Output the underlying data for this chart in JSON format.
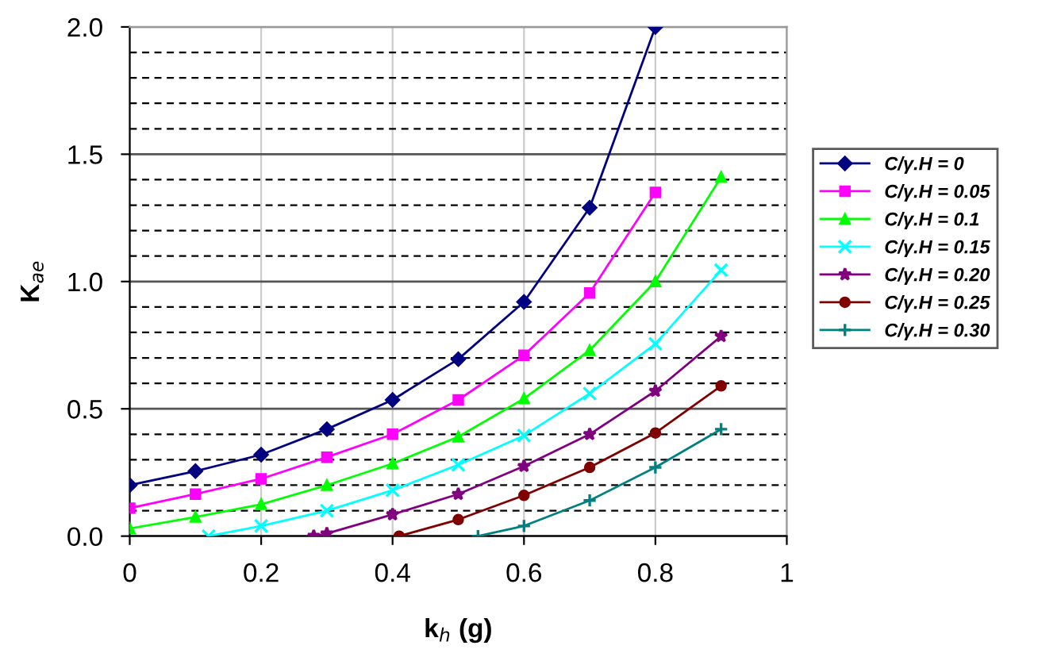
{
  "chart_data": {
    "type": "line",
    "xlabel": "k$_{h}$ (g)",
    "ylabel": "K$_{ae}$",
    "xlim": [
      0,
      1
    ],
    "ylim": [
      0,
      2
    ],
    "xticks": [
      0,
      0.2,
      0.4,
      0.6,
      0.8,
      1
    ],
    "yticks": [
      {
        "value": 0,
        "label": "0.0"
      },
      {
        "value": 0.5,
        "label": "0.5"
      },
      {
        "value": 1,
        "label": "1.0"
      },
      {
        "value": 1.5,
        "label": "1.5"
      },
      {
        "value": 2,
        "label": "2.0"
      }
    ],
    "grid": true,
    "legend": "right",
    "line_style": "solid",
    "ref_lines": [
      {
        "axis": "y",
        "value": 0.1,
        "line_style": "dashed",
        "color": "#000000"
      },
      {
        "axis": "y",
        "value": 0.2,
        "line_style": "dashed",
        "color": "#000000"
      },
      {
        "axis": "y",
        "value": 0.3,
        "line_style": "dashed",
        "color": "#000000"
      },
      {
        "axis": "y",
        "value": 0.4,
        "line_style": "dashed",
        "color": "#000000"
      },
      {
        "axis": "y",
        "value": 0.6,
        "line_style": "dashed",
        "color": "#000000"
      },
      {
        "axis": "y",
        "value": 0.7,
        "line_style": "dashed",
        "color": "#000000"
      },
      {
        "axis": "y",
        "value": 0.8,
        "line_style": "dashed",
        "color": "#000000"
      },
      {
        "axis": "y",
        "value": 0.9,
        "line_style": "dashed",
        "color": "#000000"
      },
      {
        "axis": "y",
        "value": 1.1,
        "line_style": "dashed",
        "color": "#000000"
      },
      {
        "axis": "y",
        "value": 1.2,
        "line_style": "dashed",
        "color": "#000000"
      },
      {
        "axis": "y",
        "value": 1.3,
        "line_style": "dashed",
        "color": "#000000"
      },
      {
        "axis": "y",
        "value": 1.4,
        "line_style": "dashed",
        "color": "#000000"
      },
      {
        "axis": "y",
        "value": 1.6,
        "line_style": "dashed",
        "color": "#000000"
      },
      {
        "axis": "y",
        "value": 1.7,
        "line_style": "dashed",
        "color": "#000000"
      },
      {
        "axis": "y",
        "value": 1.8,
        "line_style": "dashed",
        "color": "#000000"
      },
      {
        "axis": "y",
        "value": 1.9,
        "line_style": "dashed",
        "color": "#000000"
      }
    ],
    "series": [
      {
        "name": "C/γ.H = 0",
        "color": "#000080",
        "marker": "diamond",
        "x": [
          0,
          0.1,
          0.2,
          0.3,
          0.4,
          0.5,
          0.6,
          0.7,
          0.8
        ],
        "values": [
          0.2,
          0.255,
          0.32,
          0.42,
          0.535,
          0.695,
          0.92,
          1.29,
          2.0
        ]
      },
      {
        "name": "C/γ.H = 0.05",
        "color": "#ff00ff",
        "marker": "square",
        "x": [
          0,
          0.1,
          0.2,
          0.3,
          0.4,
          0.5,
          0.6,
          0.7,
          0.8
        ],
        "values": [
          0.11,
          0.165,
          0.225,
          0.31,
          0.4,
          0.535,
          0.71,
          0.955,
          1.35
        ]
      },
      {
        "name": "C/γ.H = 0.1",
        "color": "#00ff00",
        "marker": "triangle",
        "x": [
          0,
          0.1,
          0.2,
          0.3,
          0.4,
          0.5,
          0.6,
          0.7,
          0.8,
          0.9
        ],
        "values": [
          0.03,
          0.075,
          0.125,
          0.2,
          0.285,
          0.39,
          0.54,
          0.73,
          1.0,
          1.41
        ]
      },
      {
        "name": "C/γ.H = 0.15",
        "color": "#00ffff",
        "marker": "cross",
        "x": [
          0.12,
          0.2,
          0.3,
          0.4,
          0.5,
          0.6,
          0.7,
          0.8,
          0.9
        ],
        "values": [
          0,
          0.04,
          0.1,
          0.18,
          0.28,
          0.395,
          0.56,
          0.755,
          1.045
        ]
      },
      {
        "name": "C/γ.H = 0.20",
        "color": "#800080",
        "marker": "star",
        "x": [
          0.28,
          0.3,
          0.4,
          0.5,
          0.6,
          0.7,
          0.8,
          0.9
        ],
        "values": [
          0,
          0.01,
          0.085,
          0.165,
          0.275,
          0.4,
          0.57,
          0.785
        ]
      },
      {
        "name": "C/γ.H = 0.25",
        "color": "#800000",
        "marker": "circle",
        "x": [
          0.41,
          0.5,
          0.6,
          0.7,
          0.8,
          0.9
        ],
        "values": [
          0,
          0.065,
          0.16,
          0.27,
          0.405,
          0.59
        ]
      },
      {
        "name": "C/γ.H = 0.30",
        "color": "#008080",
        "marker": "plus",
        "x": [
          0.53,
          0.6,
          0.7,
          0.8,
          0.9
        ],
        "values": [
          0,
          0.04,
          0.14,
          0.27,
          0.42
        ]
      }
    ]
  }
}
